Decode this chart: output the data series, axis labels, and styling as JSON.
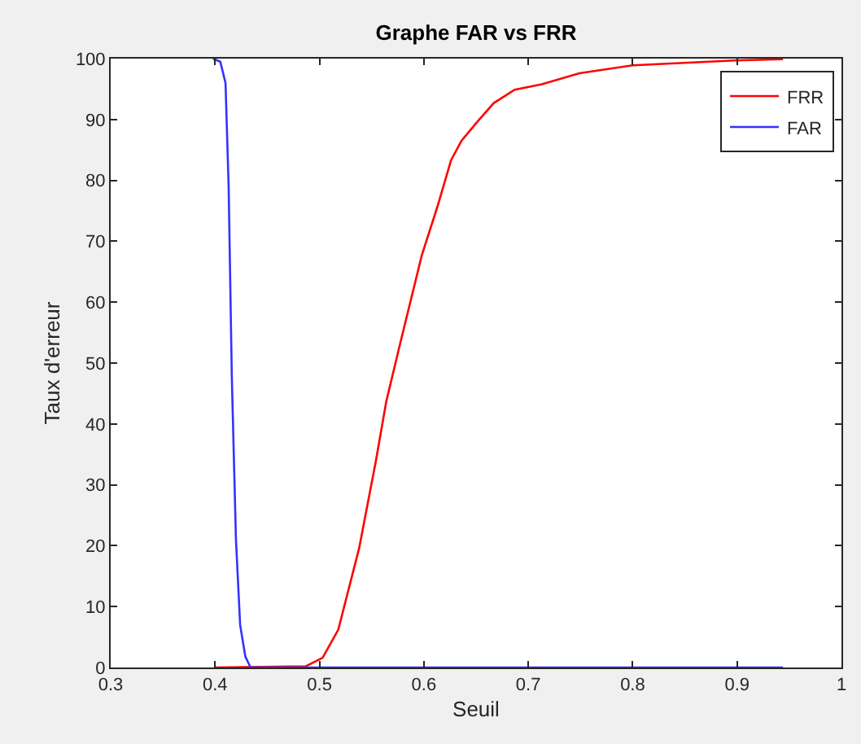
{
  "chart_data": {
    "type": "line",
    "title": "Graphe FAR vs FRR",
    "xlabel": "Seuil",
    "ylabel": "Taux d'erreur",
    "xlim": [
      0.3,
      1
    ],
    "ylim": [
      0,
      100
    ],
    "xticks": [
      0.3,
      0.4,
      0.5,
      0.6,
      0.7,
      0.8,
      0.9,
      1
    ],
    "yticks": [
      0,
      10,
      20,
      30,
      40,
      50,
      60,
      70,
      80,
      90,
      100
    ],
    "legend": "top right",
    "series": [
      {
        "name": "FRR",
        "color": "#ff0000",
        "x": [
          0.4,
          0.487,
          0.503,
          0.518,
          0.538,
          0.554,
          0.564,
          0.577,
          0.598,
          0.613,
          0.626,
          0.636,
          0.651,
          0.667,
          0.687,
          0.713,
          0.749,
          0.8,
          0.898,
          0.944
        ],
        "values": [
          0,
          0.2,
          1.6,
          6.2,
          19.6,
          33.9,
          43.7,
          53,
          67.7,
          75.7,
          83.3,
          86.5,
          89.6,
          92.7,
          94.9,
          95.8,
          97.6,
          98.9,
          99.7,
          99.9
        ]
      },
      {
        "name": "FAR",
        "color": "#3333ff",
        "x": [
          0.398,
          0.405,
          0.41,
          0.413,
          0.416,
          0.42,
          0.424,
          0.429,
          0.434,
          0.944
        ],
        "values": [
          100,
          99.5,
          96,
          79,
          48,
          21,
          7,
          1.8,
          0,
          0
        ]
      }
    ]
  }
}
